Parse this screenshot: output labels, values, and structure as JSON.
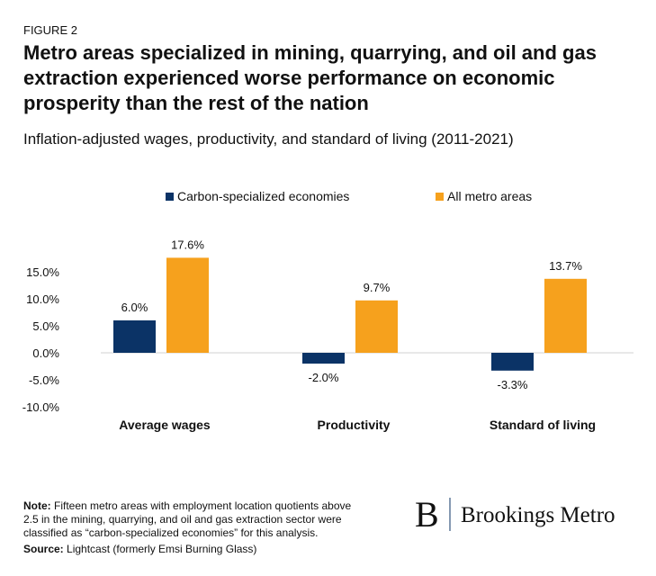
{
  "figure_label": "FIGURE 2",
  "chart_data": {
    "type": "bar",
    "title": [
      "Metro areas specialized in mining, quarrying, and oil and gas",
      "extraction experienced worse performance on economic",
      "prosperity than the rest of the nation"
    ],
    "subtitle": "Inflation-adjusted wages, productivity, and standard of living (2011-2021)",
    "categories": [
      "Average wages",
      "Productivity",
      "Standard of living"
    ],
    "series": [
      {
        "name": "Carbon-specialized economies",
        "color": "#0b3366",
        "values": [
          6.0,
          -2.0,
          -3.3
        ],
        "value_labels": [
          "6.0%",
          "-2.0%",
          "-3.3%"
        ]
      },
      {
        "name": "All metro areas",
        "color": "#f6a11d",
        "values": [
          17.6,
          9.7,
          13.7
        ],
        "value_labels": [
          "17.6%",
          "9.7%",
          "13.7%"
        ]
      }
    ],
    "ylim": [
      -10,
      20
    ],
    "yticks": [
      {
        "value": -10,
        "label": "-10.0%"
      },
      {
        "value": -5,
        "label": "-5.0%"
      },
      {
        "value": 0,
        "label": "0.0%"
      },
      {
        "value": 5,
        "label": "5.0%"
      },
      {
        "value": 10,
        "label": "10.0%"
      },
      {
        "value": 15,
        "label": "15.0%"
      }
    ],
    "legend": "top"
  },
  "note": {
    "label": "Note:",
    "lines": [
      " Fifteen metro areas with employment location quotients above",
      "2.5 in the mining, quarrying, and oil and gas extraction sector were",
      "classified as “carbon-specialized economies” for this analysis."
    ]
  },
  "source": {
    "label": "Source:",
    "text": " Lightcast (formerly Emsi Burning Glass)"
  },
  "logo": {
    "mark": "B",
    "text": "Brookings Metro"
  }
}
